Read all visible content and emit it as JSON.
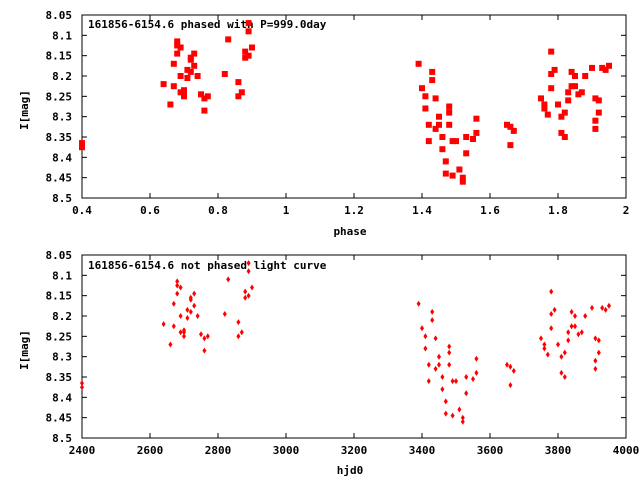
{
  "chart_data": [
    {
      "type": "scatter",
      "title": "161856-6154.6 phased with P=999.0day",
      "xlabel": "phase",
      "ylabel": "I[mag]",
      "xlim": [
        0.4,
        2.0
      ],
      "ylim": [
        8.05,
        8.5
      ],
      "y_inverted": true,
      "x_ticks": [
        "0.4",
        "0.6",
        "0.8",
        "1",
        "1.2",
        "1.4",
        "1.6",
        "1.8",
        "2"
      ],
      "y_ticks": [
        "8.05",
        "8.1",
        "8.15",
        "8.2",
        "8.25",
        "8.3",
        "8.35",
        "8.4",
        "8.45",
        "8.5"
      ],
      "marker": "square",
      "color": "#ff0000",
      "series": [
        {
          "x": [
            0.4,
            0.4,
            0.64,
            0.66,
            0.67,
            0.67,
            0.68,
            0.68,
            0.68,
            0.69,
            0.69,
            0.69,
            0.7,
            0.7,
            0.7,
            0.71,
            0.71,
            0.72,
            0.72,
            0.72,
            0.73,
            0.73,
            0.74,
            0.75,
            0.76,
            0.76,
            0.77,
            0.82,
            0.83,
            0.86,
            0.86,
            0.87,
            0.88,
            0.88,
            0.89,
            0.89,
            0.89,
            0.9,
            1.39,
            1.4,
            1.41,
            1.41,
            1.42,
            1.42,
            1.43,
            1.43,
            1.44,
            1.44,
            1.45,
            1.45,
            1.46,
            1.46,
            1.47,
            1.47,
            1.48,
            1.48,
            1.48,
            1.49,
            1.49,
            1.5,
            1.51,
            1.52,
            1.52,
            1.53,
            1.53,
            1.55,
            1.56,
            1.56,
            1.65,
            1.66,
            1.66,
            1.67,
            1.75,
            1.76,
            1.76,
            1.77,
            1.78,
            1.78,
            1.78,
            1.79,
            1.8,
            1.81,
            1.81,
            1.82,
            1.82,
            1.83,
            1.83,
            1.84,
            1.84,
            1.85,
            1.85,
            1.86,
            1.87,
            1.88,
            1.9,
            1.91,
            1.91,
            1.91,
            1.92,
            1.92,
            1.93,
            1.94,
            1.95
          ],
          "y": [
            8.365,
            8.375,
            8.22,
            8.27,
            8.225,
            8.17,
            8.115,
            8.125,
            8.145,
            8.13,
            8.2,
            8.24,
            8.235,
            8.24,
            8.25,
            8.205,
            8.185,
            8.155,
            8.16,
            8.19,
            8.175,
            8.145,
            8.2,
            8.245,
            8.255,
            8.285,
            8.25,
            8.195,
            8.11,
            8.215,
            8.25,
            8.24,
            8.155,
            8.14,
            8.15,
            8.07,
            8.09,
            8.13,
            8.17,
            8.23,
            8.28,
            8.25,
            8.36,
            8.32,
            8.21,
            8.19,
            8.255,
            8.33,
            8.3,
            8.32,
            8.35,
            8.38,
            8.41,
            8.44,
            8.32,
            8.29,
            8.275,
            8.36,
            8.445,
            8.36,
            8.43,
            8.45,
            8.46,
            8.39,
            8.35,
            8.355,
            8.305,
            8.34,
            8.32,
            8.325,
            8.37,
            8.335,
            8.255,
            8.28,
            8.27,
            8.295,
            8.23,
            8.195,
            8.14,
            8.185,
            8.27,
            8.3,
            8.34,
            8.35,
            8.29,
            8.26,
            8.24,
            8.225,
            8.19,
            8.2,
            8.225,
            8.245,
            8.24,
            8.2,
            8.18,
            8.255,
            8.31,
            8.33,
            8.29,
            8.26,
            8.18,
            8.185,
            8.175
          ]
        }
      ]
    },
    {
      "type": "scatter",
      "title": "161856-6154.6 not phased light curve",
      "xlabel": "hjd0",
      "ylabel": "I[mag]",
      "xlim": [
        2400,
        4000
      ],
      "ylim": [
        8.05,
        8.5
      ],
      "y_inverted": true,
      "x_ticks": [
        "2400",
        "2600",
        "2800",
        "3000",
        "3200",
        "3400",
        "3600",
        "3800",
        "4000"
      ],
      "y_ticks": [
        "8.05",
        "8.1",
        "8.15",
        "8.2",
        "8.25",
        "8.3",
        "8.35",
        "8.4",
        "8.45",
        "8.5"
      ],
      "marker": "diamond",
      "color": "#ff0000",
      "series": [
        {
          "x": [
            2400,
            2400,
            2640,
            2660,
            2670,
            2670,
            2680,
            2680,
            2680,
            2690,
            2690,
            2690,
            2700,
            2700,
            2700,
            2710,
            2710,
            2720,
            2720,
            2720,
            2730,
            2730,
            2740,
            2750,
            2760,
            2760,
            2770,
            2820,
            2830,
            2860,
            2860,
            2870,
            2880,
            2880,
            2890,
            2890,
            2890,
            2900,
            3390,
            3400,
            3410,
            3410,
            3420,
            3420,
            3430,
            3430,
            3440,
            3440,
            3450,
            3450,
            3460,
            3460,
            3470,
            3470,
            3480,
            3480,
            3480,
            3490,
            3490,
            3500,
            3510,
            3520,
            3520,
            3530,
            3530,
            3550,
            3560,
            3560,
            3650,
            3660,
            3660,
            3670,
            3750,
            3760,
            3760,
            3770,
            3780,
            3780,
            3780,
            3790,
            3800,
            3810,
            3810,
            3820,
            3820,
            3830,
            3830,
            3840,
            3840,
            3850,
            3850,
            3860,
            3870,
            3880,
            3900,
            3910,
            3910,
            3910,
            3920,
            3920,
            3930,
            3940,
            3950
          ],
          "y": [
            8.365,
            8.375,
            8.22,
            8.27,
            8.225,
            8.17,
            8.115,
            8.125,
            8.145,
            8.13,
            8.2,
            8.24,
            8.235,
            8.24,
            8.25,
            8.205,
            8.185,
            8.155,
            8.16,
            8.19,
            8.175,
            8.145,
            8.2,
            8.245,
            8.255,
            8.285,
            8.25,
            8.195,
            8.11,
            8.215,
            8.25,
            8.24,
            8.155,
            8.14,
            8.15,
            8.07,
            8.09,
            8.13,
            8.17,
            8.23,
            8.28,
            8.25,
            8.36,
            8.32,
            8.21,
            8.19,
            8.255,
            8.33,
            8.3,
            8.32,
            8.35,
            8.38,
            8.41,
            8.44,
            8.32,
            8.29,
            8.275,
            8.36,
            8.445,
            8.36,
            8.43,
            8.45,
            8.46,
            8.39,
            8.35,
            8.355,
            8.305,
            8.34,
            8.32,
            8.325,
            8.37,
            8.335,
            8.255,
            8.28,
            8.27,
            8.295,
            8.23,
            8.195,
            8.14,
            8.185,
            8.27,
            8.3,
            8.34,
            8.35,
            8.29,
            8.26,
            8.24,
            8.225,
            8.19,
            8.2,
            8.225,
            8.245,
            8.24,
            8.2,
            8.18,
            8.255,
            8.31,
            8.33,
            8.29,
            8.26,
            8.18,
            8.185,
            8.175
          ]
        }
      ]
    }
  ]
}
